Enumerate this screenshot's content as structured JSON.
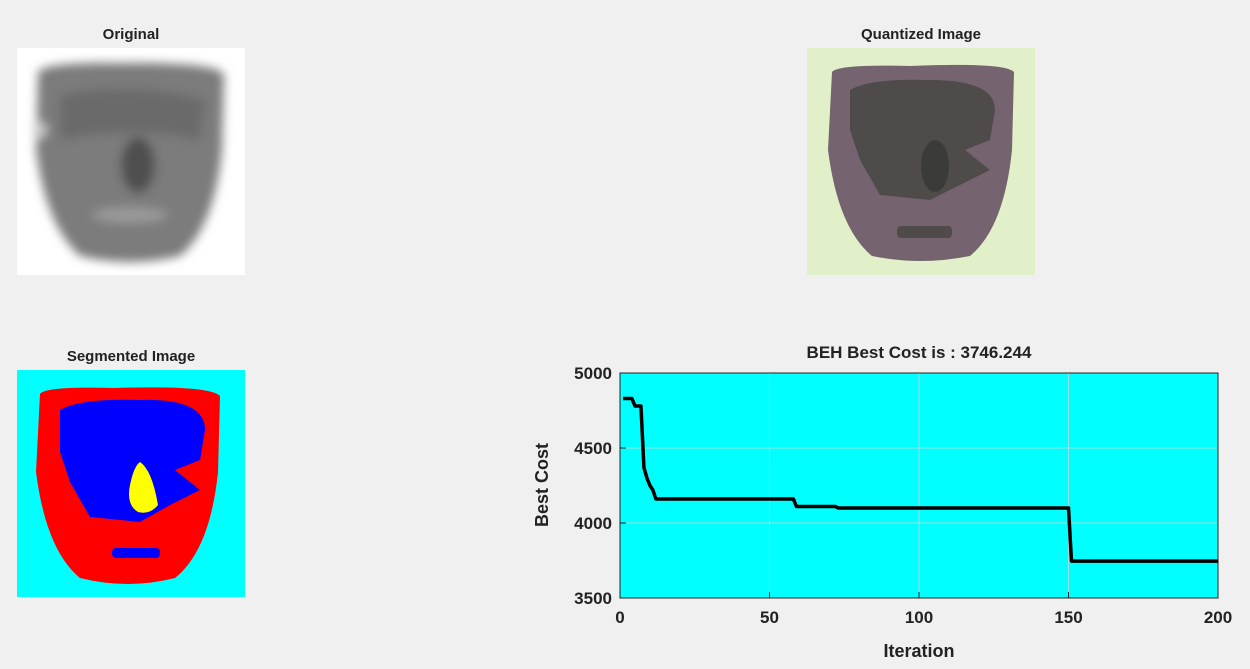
{
  "images": [
    {
      "title": "Original"
    },
    {
      "title": "Quantized Image"
    },
    {
      "title": "Segmented Image"
    }
  ],
  "chart_data": {
    "type": "line",
    "title": "BEH Best Cost is :  3746.244",
    "x_label": "Iteration",
    "y_label": "Best Cost",
    "x": [
      1,
      4,
      5,
      7,
      8,
      9,
      10,
      11,
      12,
      58,
      59,
      72,
      73,
      150,
      151,
      200
    ],
    "series": [
      {
        "name": "Best Cost",
        "color": "#000000",
        "values": [
          4830,
          4830,
          4780,
          4780,
          4370,
          4300,
          4250,
          4220,
          4160,
          4160,
          4110,
          4110,
          4100,
          4100,
          3746.244,
          3746.244
        ]
      }
    ],
    "xlim": [
      0,
      200
    ],
    "ylim": [
      3500,
      5000
    ],
    "xticks": [
      0,
      50,
      100,
      150,
      200
    ],
    "yticks": [
      3500,
      4000,
      4500,
      5000
    ],
    "grid": true,
    "background": "#00ffff"
  }
}
